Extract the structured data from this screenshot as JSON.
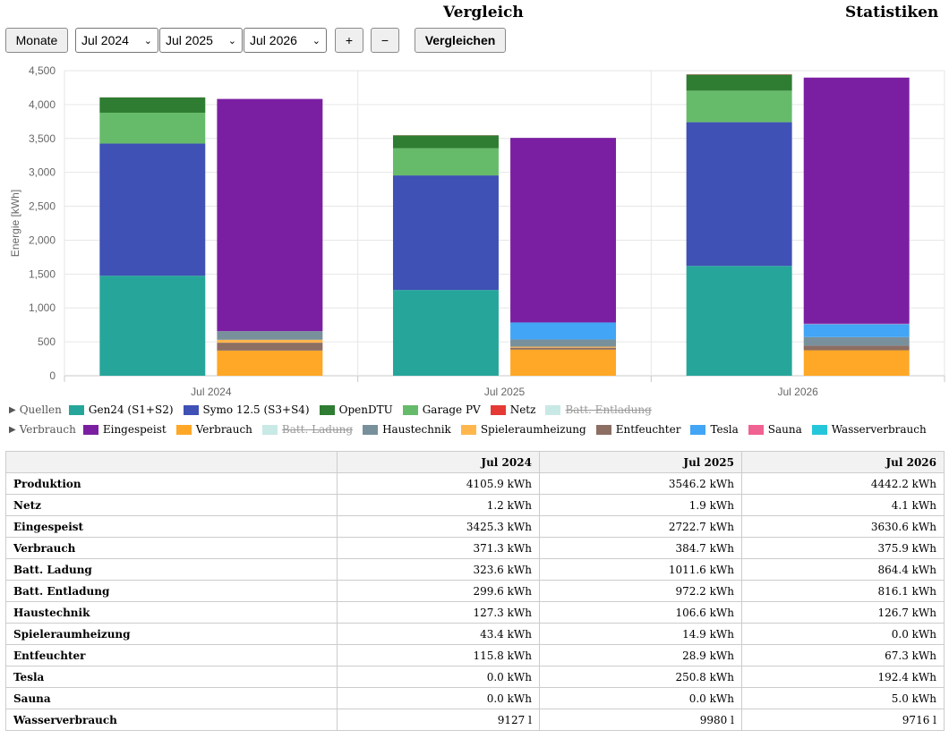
{
  "header": {
    "compare_title": "Vergleich",
    "stats_title": "Statistiken"
  },
  "controls": {
    "mode_button": "Monate",
    "selects": [
      "Jul 2024",
      "Jul 2025",
      "Jul 2026"
    ],
    "plus": "+",
    "minus": "−",
    "compare_button": "Vergleichen"
  },
  "chart_data": {
    "type": "bar",
    "stacked": true,
    "categories": [
      "Jul 2024",
      "Jul 2025",
      "Jul 2026"
    ],
    "ylabel": "Energie [kWh]",
    "ylim": [
      0,
      4500
    ],
    "yticks": [
      0,
      500,
      1000,
      1500,
      2000,
      2500,
      3000,
      3500,
      4000,
      4500
    ],
    "yticklabels": [
      "0",
      "500",
      "1,000",
      "1,500",
      "2,000",
      "2,500",
      "3,000",
      "3,500",
      "4,000",
      "4,500"
    ],
    "grid": true,
    "legend": [
      {
        "group": "Quellen",
        "items": [
          {
            "name": "Gen24 (S1+S2)",
            "color": "#26a69a",
            "hidden": false
          },
          {
            "name": "Symo 12.5 (S3+S4)",
            "color": "#3f51b5",
            "hidden": false
          },
          {
            "name": "OpenDTU",
            "color": "#2e7d32",
            "hidden": false
          },
          {
            "name": "Garage PV",
            "color": "#66bb6a",
            "hidden": false
          },
          {
            "name": "Netz",
            "color": "#e53935",
            "hidden": false
          },
          {
            "name": "Batt. Entladung",
            "color": "#b2dfdb",
            "hidden": true
          }
        ]
      },
      {
        "group": "Verbrauch",
        "items": [
          {
            "name": "Eingespeist",
            "color": "#7b1fa2",
            "hidden": false
          },
          {
            "name": "Verbrauch",
            "color": "#ffa726",
            "hidden": false
          },
          {
            "name": "Batt. Ladung",
            "color": "#b2dfdb",
            "hidden": true
          },
          {
            "name": "Haustechnik",
            "color": "#78909c",
            "hidden": false
          },
          {
            "name": "Spieleraumheizung",
            "color": "#ffb74d",
            "hidden": false
          },
          {
            "name": "Entfeuchter",
            "color": "#8d6e63",
            "hidden": false
          },
          {
            "name": "Tesla",
            "color": "#42a5f5",
            "hidden": false
          },
          {
            "name": "Sauna",
            "color": "#f06292",
            "hidden": false
          },
          {
            "name": "Wasserverbrauch",
            "color": "#26c6da",
            "hidden": false
          }
        ]
      }
    ],
    "stacks": [
      {
        "stack": "Quellen",
        "series": [
          {
            "name": "Gen24 (S1+S2)",
            "color": "#26a69a",
            "values": [
              1475,
              1265,
              1620
            ]
          },
          {
            "name": "Symo 12.5 (S3+S4)",
            "color": "#3f51b5",
            "values": [
              1950,
              1690,
              2120
            ]
          },
          {
            "name": "Garage PV",
            "color": "#66bb6a",
            "values": [
              455,
              400,
              465
            ]
          },
          {
            "name": "OpenDTU",
            "color": "#2e7d32",
            "values": [
              225,
              191,
              237
            ]
          },
          {
            "name": "Netz",
            "color": "#e53935",
            "values": [
              1.2,
              1.9,
              4.1
            ]
          }
        ]
      },
      {
        "stack": "Verbrauch",
        "series": [
          {
            "name": "Verbrauch",
            "color": "#ffa726",
            "values": [
              371.3,
              384.7,
              375.9
            ]
          },
          {
            "name": "Entfeuchter",
            "color": "#8d6e63",
            "values": [
              115.8,
              28.9,
              67.3
            ]
          },
          {
            "name": "Spieleraumheizung",
            "color": "#ffb74d",
            "values": [
              43.4,
              14.9,
              0
            ]
          },
          {
            "name": "Haustechnik",
            "color": "#78909c",
            "values": [
              127.3,
              106.6,
              126.7
            ]
          },
          {
            "name": "Tesla",
            "color": "#42a5f5",
            "values": [
              0,
              250.8,
              192.4
            ]
          },
          {
            "name": "Sauna",
            "color": "#f06292",
            "values": [
              0,
              0,
              5.0
            ]
          },
          {
            "name": "Eingespeist",
            "color": "#7b1fa2",
            "values": [
              3425.3,
              2722.7,
              3630.6
            ]
          }
        ]
      }
    ]
  },
  "table": {
    "columns": [
      "",
      "Jul 2024",
      "Jul 2025",
      "Jul 2026"
    ],
    "rows": [
      [
        "Produktion",
        "4105.9 kWh",
        "3546.2 kWh",
        "4442.2 kWh"
      ],
      [
        "Netz",
        "1.2 kWh",
        "1.9 kWh",
        "4.1 kWh"
      ],
      [
        "Eingespeist",
        "3425.3 kWh",
        "2722.7 kWh",
        "3630.6 kWh"
      ],
      [
        "Verbrauch",
        "371.3 kWh",
        "384.7 kWh",
        "375.9 kWh"
      ],
      [
        "Batt. Ladung",
        "323.6 kWh",
        "1011.6 kWh",
        "864.4 kWh"
      ],
      [
        "Batt. Entladung",
        "299.6 kWh",
        "972.2 kWh",
        "816.1 kWh"
      ],
      [
        "Haustechnik",
        "127.3 kWh",
        "106.6 kWh",
        "126.7 kWh"
      ],
      [
        "Spieleraumheizung",
        "43.4 kWh",
        "14.9 kWh",
        "0.0 kWh"
      ],
      [
        "Entfeuchter",
        "115.8 kWh",
        "28.9 kWh",
        "67.3 kWh"
      ],
      [
        "Tesla",
        "0.0 kWh",
        "250.8 kWh",
        "192.4 kWh"
      ],
      [
        "Sauna",
        "0.0 kWh",
        "0.0 kWh",
        "5.0 kWh"
      ],
      [
        "Wasserverbrauch",
        "9127 l",
        "9980 l",
        "9716 l"
      ]
    ]
  }
}
